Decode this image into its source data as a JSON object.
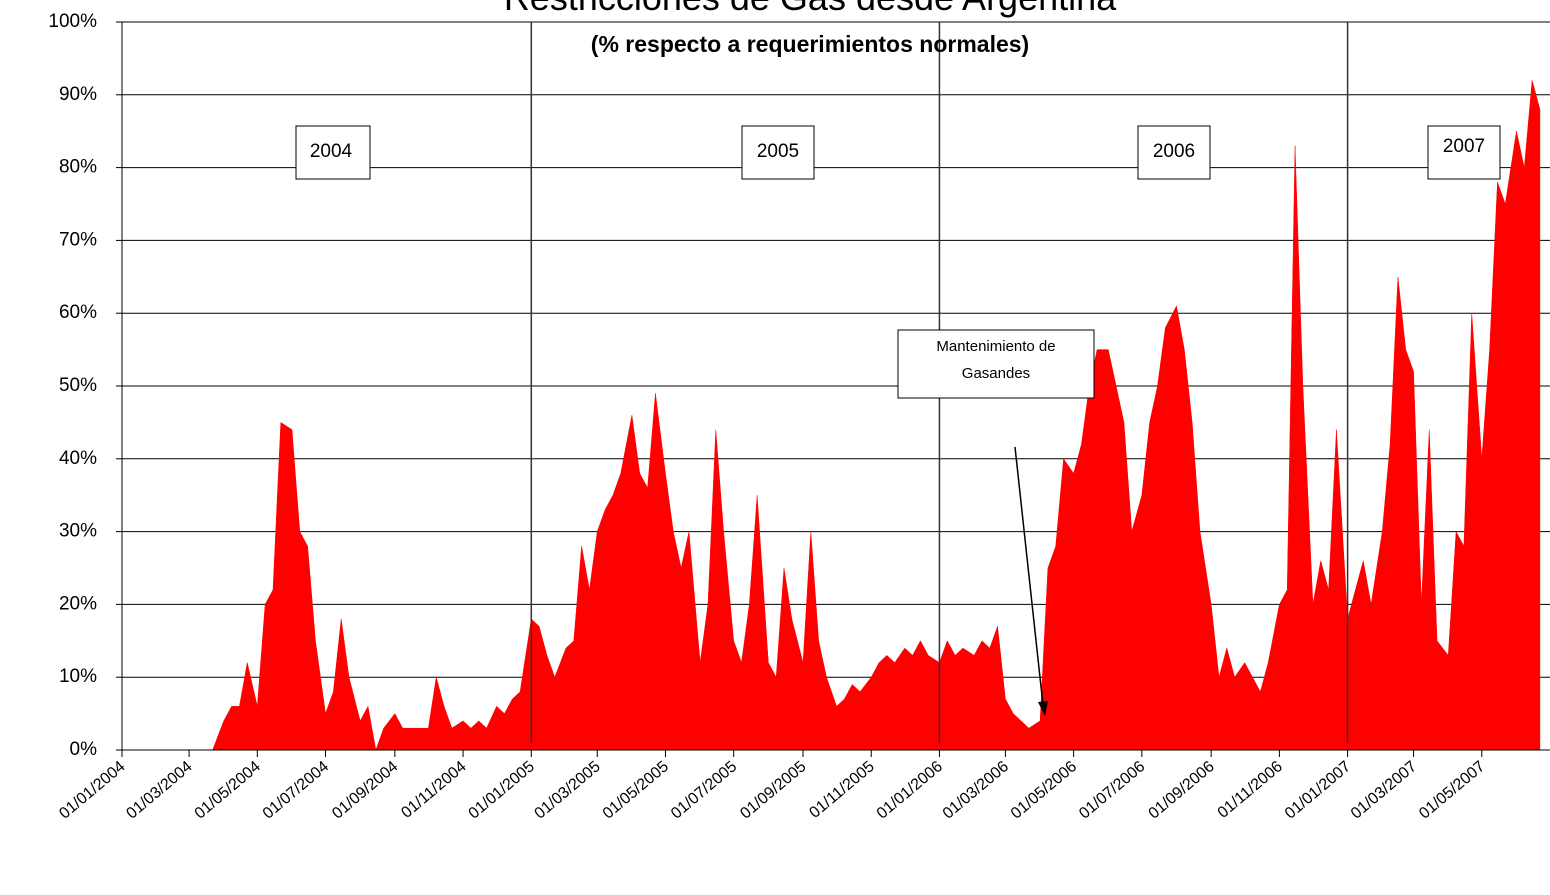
{
  "chart_data": {
    "type": "area",
    "title": "Restricciones de Gas desde Argentina",
    "subtitle": "(% respecto a requerimientos normales)",
    "color": "#ff0000",
    "grid": true,
    "xlim": [
      "01/01/2004",
      "01/07/2007"
    ],
    "ylim": [
      0,
      100
    ],
    "yticks": [
      {
        "value": 0,
        "label": "0%"
      },
      {
        "value": 10,
        "label": "10%"
      },
      {
        "value": 20,
        "label": "20%"
      },
      {
        "value": 30,
        "label": "30%"
      },
      {
        "value": 40,
        "label": "40%"
      },
      {
        "value": 50,
        "label": "50%"
      },
      {
        "value": 60,
        "label": "60%"
      },
      {
        "value": 70,
        "label": "70%"
      },
      {
        "value": 80,
        "label": "80%"
      },
      {
        "value": 90,
        "label": "90%"
      },
      {
        "value": 100,
        "label": "100%"
      }
    ],
    "xticks": [
      "01/01/2004",
      "01/03/2004",
      "01/05/2004",
      "01/07/2004",
      "01/09/2004",
      "01/11/2004",
      "01/01/2005",
      "01/03/2005",
      "01/05/2005",
      "01/07/2005",
      "01/09/2005",
      "01/11/2005",
      "01/01/2006",
      "01/03/2006",
      "01/05/2006",
      "01/07/2006",
      "01/09/2006",
      "01/11/2006",
      "01/01/2007",
      "01/03/2007",
      "01/05/2007"
    ],
    "year_lines": [
      "01/01/2005",
      "01/01/2006",
      "01/01/2007"
    ],
    "year_labels": [
      "2004",
      "2005",
      "2006",
      "2007"
    ],
    "annotation": [
      "Mantenimiento de",
      "Gasandes"
    ],
    "x": [
      "01/01/2004",
      "08/01/2004",
      "15/01/2004",
      "22/01/2004",
      "01/02/2004",
      "08/02/2004",
      "15/02/2004",
      "22/02/2004",
      "01/03/2004",
      "08/03/2004",
      "15/03/2004",
      "22/03/2004",
      "01/04/2004",
      "08/04/2004",
      "15/04/2004",
      "22/04/2004",
      "01/05/2004",
      "08/05/2004",
      "15/05/2004",
      "22/05/2004",
      "01/06/2004",
      "08/06/2004",
      "15/06/2004",
      "22/06/2004",
      "01/07/2004",
      "08/07/2004",
      "15/07/2004",
      "22/07/2004",
      "01/08/2004",
      "08/08/2004",
      "15/08/2004",
      "22/08/2004",
      "01/09/2004",
      "08/09/2004",
      "15/09/2004",
      "22/09/2004",
      "01/10/2004",
      "08/10/2004",
      "15/10/2004",
      "22/10/2004",
      "01/11/2004",
      "08/11/2004",
      "15/11/2004",
      "22/11/2004",
      "01/12/2004",
      "08/12/2004",
      "15/12/2004",
      "22/12/2004",
      "01/01/2005",
      "08/01/2005",
      "15/01/2005",
      "22/01/2005",
      "01/02/2005",
      "08/02/2005",
      "15/02/2005",
      "22/02/2005",
      "01/03/2005",
      "08/03/2005",
      "15/03/2005",
      "22/03/2005",
      "01/04/2005",
      "08/04/2005",
      "15/04/2005",
      "22/04/2005",
      "01/05/2005",
      "08/05/2005",
      "15/05/2005",
      "22/05/2005",
      "01/06/2005",
      "08/06/2005",
      "15/06/2005",
      "22/06/2005",
      "01/07/2005",
      "08/07/2005",
      "15/07/2005",
      "22/07/2005",
      "01/08/2005",
      "08/08/2005",
      "15/08/2005",
      "22/08/2005",
      "01/09/2005",
      "08/09/2005",
      "15/09/2005",
      "22/09/2005",
      "01/10/2005",
      "08/10/2005",
      "15/10/2005",
      "22/10/2005",
      "01/11/2005",
      "08/11/2005",
      "15/11/2005",
      "22/11/2005",
      "01/12/2005",
      "08/12/2005",
      "15/12/2005",
      "22/12/2005",
      "01/01/2006",
      "08/01/2006",
      "15/01/2006",
      "22/01/2006",
      "01/02/2006",
      "08/02/2006",
      "15/02/2006",
      "22/02/2006",
      "01/03/2006",
      "08/03/2006",
      "15/03/2006",
      "22/03/2006",
      "01/04/2006",
      "08/04/2006",
      "15/04/2006",
      "22/04/2006",
      "01/05/2006",
      "08/05/2006",
      "15/05/2006",
      "22/05/2006",
      "01/06/2006",
      "08/06/2006",
      "15/06/2006",
      "22/06/2006",
      "01/07/2006",
      "08/07/2006",
      "15/07/2006",
      "22/07/2006",
      "01/08/2006",
      "08/08/2006",
      "15/08/2006",
      "22/08/2006",
      "01/09/2006",
      "08/09/2006",
      "15/09/2006",
      "22/09/2006",
      "01/10/2006",
      "08/10/2006",
      "15/10/2006",
      "22/10/2006",
      "01/11/2006",
      "08/11/2006",
      "15/11/2006",
      "22/11/2006",
      "01/12/2006",
      "08/12/2006",
      "15/12/2006",
      "22/12/2006",
      "01/01/2007",
      "08/01/2007",
      "15/01/2007",
      "22/01/2007",
      "01/02/2007",
      "08/02/2007",
      "15/02/2007",
      "22/02/2007",
      "01/03/2007",
      "08/03/2007",
      "15/03/2007",
      "22/03/2007",
      "01/04/2007",
      "08/04/2007",
      "15/04/2007",
      "22/04/2007",
      "01/05/2007",
      "08/05/2007",
      "15/05/2007",
      "22/05/2007",
      "01/06/2007",
      "08/06/2007",
      "15/06/2007",
      "22/06/2007"
    ],
    "values": [
      0,
      0,
      0,
      0,
      0,
      0,
      0,
      0,
      0,
      0,
      0,
      0,
      4,
      6,
      6,
      12,
      6,
      20,
      22,
      45,
      44,
      30,
      28,
      15,
      5,
      8,
      18,
      10,
      4,
      6,
      0,
      3,
      5,
      3,
      3,
      3,
      3,
      10,
      6,
      3,
      4,
      3,
      4,
      3,
      6,
      5,
      7,
      8,
      18,
      17,
      13,
      10,
      14,
      15,
      28,
      22,
      30,
      33,
      35,
      38,
      46,
      38,
      36,
      49,
      38,
      30,
      25,
      30,
      12,
      20,
      44,
      30,
      15,
      12,
      20,
      35,
      12,
      10,
      25,
      18,
      12,
      30,
      15,
      10,
      6,
      7,
      9,
      8,
      10,
      12,
      13,
      12,
      14,
      13,
      15,
      13,
      12,
      15,
      13,
      14,
      13,
      15,
      14,
      17,
      7,
      5,
      4,
      3,
      4,
      25,
      28,
      40,
      38,
      42,
      50,
      55,
      55,
      50,
      45,
      30,
      35,
      45,
      50,
      58,
      61,
      55,
      45,
      30,
      20,
      10,
      14,
      10,
      12,
      10,
      8,
      12,
      20,
      22,
      83,
      50,
      20,
      26,
      22,
      44,
      18,
      22,
      26,
      20,
      30,
      42,
      65,
      55,
      52,
      20,
      44,
      15,
      13,
      30,
      28,
      60,
      40,
      55,
      78,
      75,
      85,
      80,
      92,
      88
    ]
  }
}
